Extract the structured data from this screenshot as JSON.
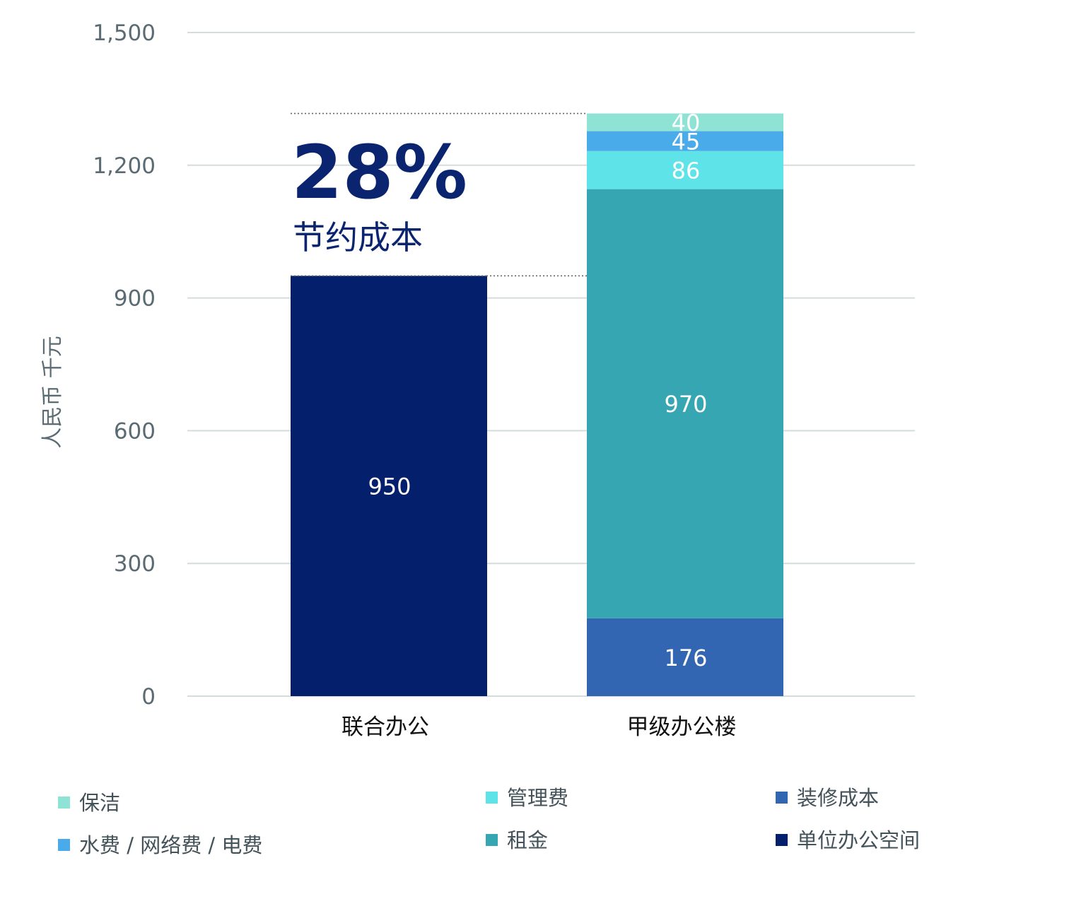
{
  "chart_data": {
    "type": "bar",
    "stacked": true,
    "ylabel": "人民币 千元",
    "ylim": [
      0,
      1500
    ],
    "yticks": [
      0,
      300,
      600,
      900,
      1200,
      1500
    ],
    "ytick_labels": [
      "0",
      "300",
      "600",
      "900",
      "1,200",
      "1,500"
    ],
    "grid": true,
    "categories": [
      "联合办公",
      "甲级办公楼"
    ],
    "series": [
      {
        "name": "单位办公空间",
        "color": "#04206c",
        "values": [
          950,
          0
        ],
        "labels": [
          "950",
          ""
        ]
      },
      {
        "name": "装修成本",
        "color": "#3366b2",
        "values": [
          0,
          176
        ],
        "labels": [
          "",
          "176"
        ]
      },
      {
        "name": "租金",
        "color": "#36a6b2",
        "values": [
          0,
          970
        ],
        "labels": [
          "",
          "970"
        ]
      },
      {
        "name": "管理费",
        "color": "#5ee3e9",
        "values": [
          0,
          86
        ],
        "labels": [
          "",
          "86"
        ]
      },
      {
        "name": "水费 / 网络费 / 电费",
        "color": "#4aabea",
        "values": [
          0,
          45
        ],
        "labels": [
          "",
          "45"
        ]
      },
      {
        "name": "保洁",
        "color": "#8fe3d4",
        "values": [
          0,
          40
        ],
        "labels": [
          "",
          "40"
        ]
      }
    ],
    "annotation": {
      "value": "28%",
      "text": "节约成本",
      "upper_ref": 1317,
      "lower_ref": 950
    },
    "legend_placement": "bottom",
    "legend_order": [
      "保洁",
      "水费 / 网络费 / 电费",
      "管理费",
      "租金",
      "装修成本",
      "单位办公空间"
    ]
  }
}
